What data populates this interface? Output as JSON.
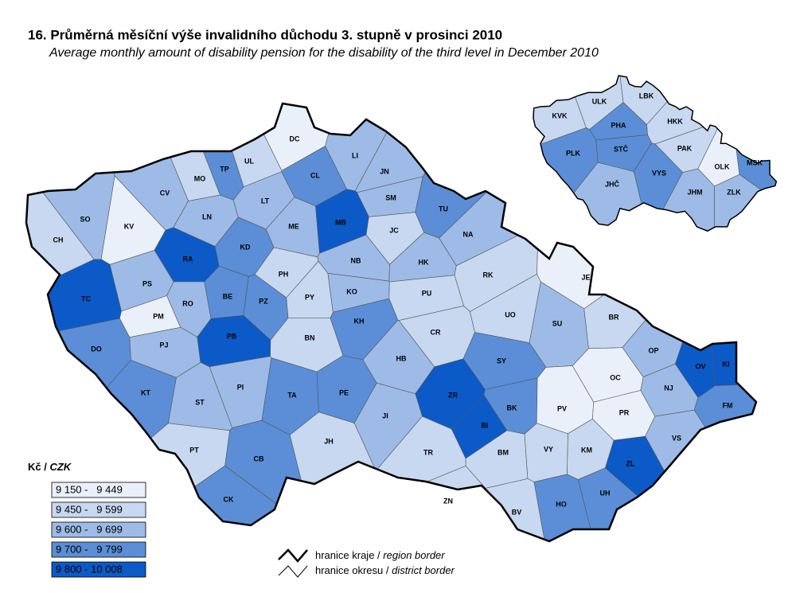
{
  "header": {
    "title": "16. Průměrná měsíční výše invalidního důchodu 3. stupně v prosinci 2010",
    "subtitle": "Average monthly amount of disability pension for the disability of the third level in December 2010"
  },
  "districts": [
    {
      "label": "CH",
      "color": "#c7d8f0"
    },
    {
      "label": "SO",
      "color": "#9dbbe6"
    },
    {
      "label": "KV",
      "color": "#eaf0fa"
    },
    {
      "label": "CV",
      "color": "#9dbbe6"
    },
    {
      "label": "MO",
      "color": "#c7d8f0"
    },
    {
      "label": "TP",
      "color": "#5b8ed7"
    },
    {
      "label": "UL",
      "color": "#c7d8f0"
    },
    {
      "label": "DC",
      "color": "#eaf0fa"
    },
    {
      "label": "LI",
      "color": "#9dbbe6"
    },
    {
      "label": "CL",
      "color": "#5b8ed7"
    },
    {
      "label": "JN",
      "color": "#9dbbe6"
    },
    {
      "label": "SM",
      "color": "#9dbbe6"
    },
    {
      "label": "LN",
      "color": "#9dbbe6"
    },
    {
      "label": "LT",
      "color": "#9dbbe6"
    },
    {
      "label": "ME",
      "color": "#9dbbe6"
    },
    {
      "label": "MB",
      "color": "#0b5ac8"
    },
    {
      "label": "JC",
      "color": "#c7d8f0"
    },
    {
      "label": "TU",
      "color": "#5b8ed7"
    },
    {
      "label": "NA",
      "color": "#9dbbe6"
    },
    {
      "label": "RA",
      "color": "#0b5ac8"
    },
    {
      "label": "KD",
      "color": "#5b8ed7"
    },
    {
      "label": "PH",
      "color": "#c7d8f0"
    },
    {
      "label": "NB",
      "color": "#9dbbe6"
    },
    {
      "label": "HK",
      "color": "#9dbbe6"
    },
    {
      "label": "RK",
      "color": "#c7d8f0"
    },
    {
      "label": "TC",
      "color": "#0b5ac8"
    },
    {
      "label": "PS",
      "color": "#9dbbe6"
    },
    {
      "label": "RO",
      "color": "#9dbbe6"
    },
    {
      "label": "PM",
      "color": "#eaf0fa"
    },
    {
      "label": "PJ",
      "color": "#9dbbe6"
    },
    {
      "label": "BE",
      "color": "#5b8ed7"
    },
    {
      "label": "PZ",
      "color": "#5b8ed7"
    },
    {
      "label": "PY",
      "color": "#c7d8f0"
    },
    {
      "label": "KO",
      "color": "#9dbbe6"
    },
    {
      "label": "KH",
      "color": "#5b8ed7"
    },
    {
      "label": "PU",
      "color": "#c7d8f0"
    },
    {
      "label": "UO",
      "color": "#c7d8f0"
    },
    {
      "label": "CR",
      "color": "#c7d8f0"
    },
    {
      "label": "SU",
      "color": "#9dbbe6"
    },
    {
      "label": "JE",
      "color": "#eaf0fa"
    },
    {
      "label": "BR",
      "color": "#c7d8f0"
    },
    {
      "label": "DO",
      "color": "#5b8ed7"
    },
    {
      "label": "PB",
      "color": "#0b5ac8"
    },
    {
      "label": "BN",
      "color": "#c7d8f0"
    },
    {
      "label": "HB",
      "color": "#9dbbe6"
    },
    {
      "label": "SY",
      "color": "#5b8ed7"
    },
    {
      "label": "ZR",
      "color": "#0b5ac8"
    },
    {
      "label": "OP",
      "color": "#9dbbe6"
    },
    {
      "label": "OV",
      "color": "#0b5ac8"
    },
    {
      "label": "KI",
      "color": "#0b5ac8"
    },
    {
      "label": "NJ",
      "color": "#9dbbe6"
    },
    {
      "label": "OC",
      "color": "#eaf0fa"
    },
    {
      "label": "KT",
      "color": "#5b8ed7"
    },
    {
      "label": "ST",
      "color": "#9dbbe6"
    },
    {
      "label": "PI",
      "color": "#9dbbe6"
    },
    {
      "label": "TA",
      "color": "#5b8ed7"
    },
    {
      "label": "PE",
      "color": "#5b8ed7"
    },
    {
      "label": "JI",
      "color": "#9dbbe6"
    },
    {
      "label": "BI",
      "color": "#0b5ac8"
    },
    {
      "label": "BK",
      "color": "#5b8ed7"
    },
    {
      "label": "PV",
      "color": "#eaf0fa"
    },
    {
      "label": "PR",
      "color": "#eaf0fa"
    },
    {
      "label": "FM",
      "color": "#5b8ed7"
    },
    {
      "label": "VS",
      "color": "#9dbbe6"
    },
    {
      "label": "KM",
      "color": "#c7d8f0"
    },
    {
      "label": "ZL",
      "color": "#0b5ac8"
    },
    {
      "label": "VY",
      "color": "#c7d8f0"
    },
    {
      "label": "BM",
      "color": "#c7d8f0"
    },
    {
      "label": "TR",
      "color": "#c7d8f0"
    },
    {
      "label": "JH",
      "color": "#c7d8f0"
    },
    {
      "label": "PT",
      "color": "#c7d8f0"
    },
    {
      "label": "CB",
      "color": "#5b8ed7"
    },
    {
      "label": "CK",
      "color": "#5b8ed7"
    },
    {
      "label": "ZN",
      "color": "#c7d8f0"
    },
    {
      "label": "BV",
      "color": "#c7d8f0"
    },
    {
      "label": "HO",
      "color": "#5b8ed7"
    },
    {
      "label": "UH",
      "color": "#5b8ed7"
    }
  ],
  "regions": [
    {
      "label": "KVK",
      "color": "#c7d8f0"
    },
    {
      "label": "ULK",
      "color": "#c7d8f0"
    },
    {
      "label": "LBK",
      "color": "#c7d8f0"
    },
    {
      "label": "HKK",
      "color": "#c7d8f0"
    },
    {
      "label": "PHA",
      "color": "#5b8ed7"
    },
    {
      "label": "STČ",
      "color": "#5b8ed7"
    },
    {
      "label": "PAK",
      "color": "#c7d8f0"
    },
    {
      "label": "PLK",
      "color": "#5b8ed7"
    },
    {
      "label": "VYS",
      "color": "#5b8ed7"
    },
    {
      "label": "OLK",
      "color": "#eaf0fa"
    },
    {
      "label": "MSK",
      "color": "#5b8ed7"
    },
    {
      "label": "JHČ",
      "color": "#9dbbe6"
    },
    {
      "label": "JHM",
      "color": "#9dbbe6"
    },
    {
      "label": "ZLK",
      "color": "#9dbbe6"
    }
  ],
  "legend": {
    "title": "Kč",
    "title_en": "CZK",
    "classes": [
      {
        "label": "9 150 -   9 449",
        "color": "#eaf0fa"
      },
      {
        "label": "9 450 -   9 599",
        "color": "#c7d8f0"
      },
      {
        "label": "9 600 -   9 699",
        "color": "#9dbbe6"
      },
      {
        "label": "9 700 -   9 799",
        "color": "#5b8ed7"
      },
      {
        "label": "9 800 - 10 008",
        "color": "#0b5ac8"
      }
    ]
  },
  "borders": {
    "region": "hranice kraje",
    "region_en": "region border",
    "district": "hranice okresu",
    "district_en": "district border"
  }
}
